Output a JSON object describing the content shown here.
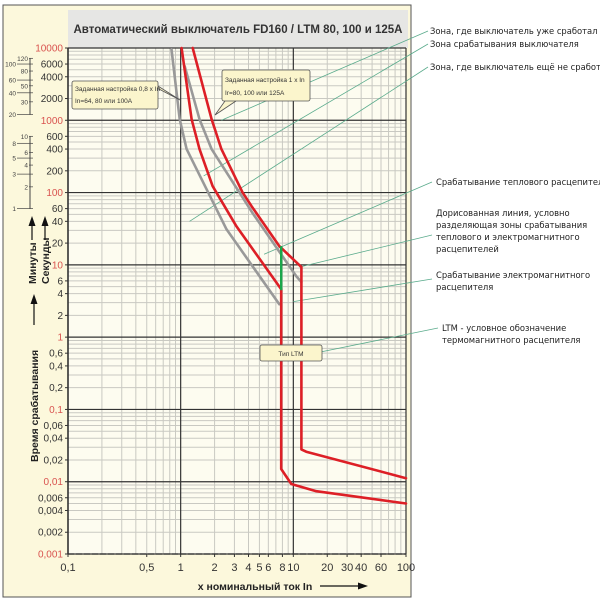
{
  "chart_data": {
    "type": "line",
    "title": "Автоматический выключатель FD160 / LTM 80, 100 и 125A",
    "xlabel": "x номинальный ток In",
    "ylabel": "Время срабатывания",
    "ylabel_minutes": "Минуты",
    "ylabel_seconds": "Секунды",
    "xscale": "log",
    "yscale": "log",
    "xlim": [
      0.1,
      100
    ],
    "ylim": [
      0.001,
      10000
    ],
    "grid": true,
    "x_ticks": [
      {
        "v": 0.1,
        "t": "0,1"
      },
      {
        "v": 0.5,
        "t": "0,5"
      },
      {
        "v": 1,
        "t": "1"
      },
      {
        "v": 2,
        "t": "2"
      },
      {
        "v": 3,
        "t": "3"
      },
      {
        "v": 4,
        "t": "4"
      },
      {
        "v": 5,
        "t": "5"
      },
      {
        "v": 6,
        "t": "6"
      },
      {
        "v": 8,
        "t": "8"
      },
      {
        "v": 10,
        "t": "10"
      },
      {
        "v": 20,
        "t": "20"
      },
      {
        "v": 30,
        "t": "30"
      },
      {
        "v": 40,
        "t": "40"
      },
      {
        "v": 60,
        "t": "60"
      },
      {
        "v": 100,
        "t": "100"
      }
    ],
    "y_ticks_seconds": [
      {
        "v": 10000,
        "t": "10000",
        "red": true
      },
      {
        "v": 6000,
        "t": "6000"
      },
      {
        "v": 4000,
        "t": "4000"
      },
      {
        "v": 2000,
        "t": "2000"
      },
      {
        "v": 1000,
        "t": "1000",
        "red": true
      },
      {
        "v": 600,
        "t": "600"
      },
      {
        "v": 400,
        "t": "400"
      },
      {
        "v": 200,
        "t": "200"
      },
      {
        "v": 100,
        "t": "100",
        "red": true
      },
      {
        "v": 60,
        "t": "60"
      },
      {
        "v": 40,
        "t": "40"
      },
      {
        "v": 20,
        "t": "20"
      },
      {
        "v": 10,
        "t": "10",
        "red": true
      },
      {
        "v": 6,
        "t": "6"
      },
      {
        "v": 4,
        "t": "4"
      },
      {
        "v": 2,
        "t": "2"
      },
      {
        "v": 1,
        "t": "1",
        "red": true
      },
      {
        "v": 0.6,
        "t": "0,6"
      },
      {
        "v": 0.4,
        "t": "0,4"
      },
      {
        "v": 0.2,
        "t": "0,2"
      },
      {
        "v": 0.1,
        "t": "0,1",
        "red": true
      },
      {
        "v": 0.06,
        "t": "0,06"
      },
      {
        "v": 0.04,
        "t": "0,04"
      },
      {
        "v": 0.02,
        "t": "0,02"
      },
      {
        "v": 0.01,
        "t": "0,01",
        "red": true
      },
      {
        "v": 0.006,
        "t": "0,006"
      },
      {
        "v": 0.004,
        "t": "0,004"
      },
      {
        "v": 0.002,
        "t": "0,002"
      },
      {
        "v": 0.001,
        "t": "0,001",
        "red": true
      }
    ],
    "y_ticks_minutes": [
      {
        "v": 120,
        "t": "120",
        "red": true
      },
      {
        "v": 100,
        "t": "100"
      },
      {
        "v": 80,
        "t": "80"
      },
      {
        "v": 60,
        "t": "60",
        "red": true
      },
      {
        "v": 50,
        "t": "50"
      },
      {
        "v": 40,
        "t": "40"
      },
      {
        "v": 30,
        "t": "30"
      },
      {
        "v": 20,
        "t": "20"
      },
      {
        "v": 10,
        "t": "10"
      },
      {
        "v": 8,
        "t": "8"
      },
      {
        "v": 6,
        "t": "6"
      },
      {
        "v": 5,
        "t": "5"
      },
      {
        "v": 4,
        "t": "4"
      },
      {
        "v": 3,
        "t": "3"
      },
      {
        "v": 2,
        "t": "2"
      },
      {
        "v": 1,
        "t": "1"
      }
    ],
    "series": [
      {
        "name": "setting 0.8 x In (min)",
        "color": "#999999",
        "points": [
          [
            0.83,
            9600
          ],
          [
            0.98,
            1035
          ],
          [
            1.13,
            400
          ],
          [
            2.55,
            31
          ],
          [
            7.5,
            2.86
          ]
        ]
      },
      {
        "name": "setting 0.8 x In (max)",
        "color": "#999999",
        "points": [
          [
            1.085,
            5600
          ],
          [
            1.47,
            1035
          ],
          [
            1.88,
            400
          ],
          [
            4.3,
            53.5
          ],
          [
            10.6,
            7
          ],
          [
            11.8,
            5.8
          ]
        ]
      },
      {
        "name": "setting 1 x In (min)",
        "color": "#dd1f26",
        "points": [
          [
            1.02,
            10000
          ],
          [
            1.25,
            1035
          ],
          [
            1.47,
            400
          ],
          [
            1.92,
            123
          ],
          [
            3.13,
            34
          ],
          [
            7.8,
            4.6
          ],
          [
            7.8,
            0.015
          ],
          [
            9.6,
            0.0093
          ],
          [
            16,
            0.0074
          ],
          [
            100,
            0.005
          ]
        ]
      },
      {
        "name": "setting 1 x In (max)",
        "color": "#dd1f26",
        "points": [
          [
            1.28,
            10000
          ],
          [
            1.88,
            1035
          ],
          [
            2.3,
            400
          ],
          [
            3.54,
            101
          ],
          [
            4.25,
            65
          ],
          [
            7.5,
            18.2
          ],
          [
            11.8,
            9.3
          ],
          [
            11.8,
            0.028
          ],
          [
            13,
            0.026
          ],
          [
            100,
            0.0112
          ]
        ]
      },
      {
        "name": "thermal/magnetic divider",
        "color": "#1aa64a",
        "points": [
          [
            7.8,
            17.6
          ],
          [
            7.8,
            4.6
          ]
        ]
      }
    ],
    "callouts": [
      {
        "line1": "Заданная настройка 0,8 x In",
        "line2": "In=64, 80 или 100А"
      },
      {
        "line1": "Заданная настройка 1 x In",
        "line2": "Ir=80, 100 или 125А"
      },
      {
        "line1": "Тип LTM"
      }
    ],
    "annotations": [
      {
        "text": [
          "Зона, где выключатель уже сработал"
        ],
        "target": [
          2.3,
          1000
        ]
      },
      {
        "text": [
          "Зона срабатывания выключателя"
        ],
        "target": [
          1.6,
          170
        ]
      },
      {
        "text": [
          "Зона, где выключатель ещё не сработал"
        ],
        "target": [
          1.2,
          40
        ]
      },
      {
        "text": [
          "Срабатывание теплового расцепителя"
        ],
        "target": [
          5.5,
          14
        ]
      },
      {
        "text": [
          "Дорисованная линия, условно",
          "разделяющая зоны срабатывания",
          "теплового и электромагнитного",
          "расцепителей"
        ],
        "target": [
          11.3,
          9.3
        ]
      },
      {
        "text": [
          "Срабатывание электромагнитного",
          "расцепителя"
        ],
        "target": [
          10,
          3.1
        ]
      },
      {
        "text": [
          "LTM - условное обозначение",
          "термомагнитного расцепителя"
        ],
        "target": [
          11.8,
          0.55
        ]
      }
    ]
  }
}
